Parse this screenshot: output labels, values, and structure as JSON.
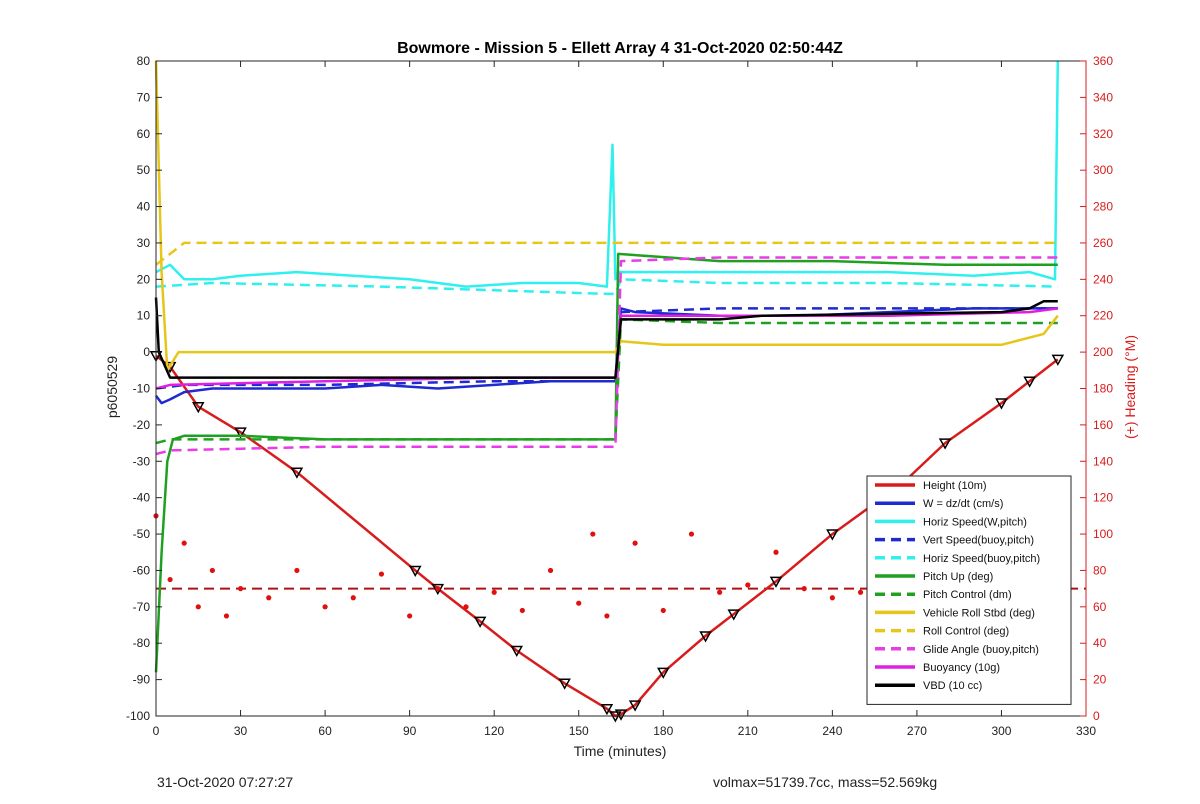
{
  "chart_data": {
    "type": "line",
    "title": "Bowmore - Mission 5 - Ellett Array 4 31-Oct-2020 02:50:44Z",
    "xlabel": "Time (minutes)",
    "ylabel_left": "p6050529",
    "ylabel_right": "(+) Heading (°M)",
    "xlim": [
      0,
      330
    ],
    "ylim_left": [
      -100,
      80
    ],
    "ylim_right": [
      0,
      360
    ],
    "x_ticks": [
      0,
      30,
      60,
      90,
      120,
      150,
      180,
      210,
      240,
      270,
      300,
      330
    ],
    "y_ticks_left": [
      80,
      70,
      60,
      50,
      40,
      30,
      20,
      10,
      0,
      -10,
      -20,
      -30,
      -40,
      -50,
      -60,
      -70,
      -80,
      -90,
      -100
    ],
    "y_ticks_right": [
      360,
      340,
      320,
      300,
      280,
      260,
      240,
      220,
      200,
      180,
      160,
      140,
      120,
      100,
      80,
      60,
      40,
      20,
      0
    ],
    "grid": false,
    "legend_position": "bottom-right",
    "legend": [
      {
        "label": "Height (10m)",
        "color": "#d81c1c",
        "style": "solid"
      },
      {
        "label": "W = dz/dt (cm/s)",
        "color": "#1f2bd0",
        "style": "solid"
      },
      {
        "label": "Horiz Speed(W,pitch)",
        "color": "#2ff0ef",
        "style": "solid"
      },
      {
        "label": "Vert Speed(buoy,pitch)",
        "color": "#1f2bd0",
        "style": "dashed"
      },
      {
        "label": "Horiz Speed(buoy,pitch)",
        "color": "#2ff0ef",
        "style": "dashed"
      },
      {
        "label": "Pitch Up (deg)",
        "color": "#20a020",
        "style": "solid"
      },
      {
        "label": "Pitch Control (dm)",
        "color": "#20a020",
        "style": "dashed"
      },
      {
        "label": "Vehicle Roll Stbd (deg)",
        "color": "#e6c619",
        "style": "solid"
      },
      {
        "label": "Roll Control (deg)",
        "color": "#e6c619",
        "style": "dashed"
      },
      {
        "label": "Glide Angle (buoy,pitch)",
        "color": "#e93ce9",
        "style": "dashed"
      },
      {
        "label": "Buoyancy (10g)",
        "color": "#e020e0",
        "style": "solid"
      },
      {
        "label": "VBD (10 cc)",
        "color": "#000000",
        "style": "solid"
      }
    ],
    "series": [
      {
        "name": "Height (10m)",
        "x": [
          0,
          5,
          15,
          30,
          50,
          92,
          100,
          115,
          128,
          145,
          160,
          163,
          165,
          170,
          180,
          195,
          205,
          220,
          240,
          265,
          280,
          300,
          310,
          320
        ],
        "y": [
          -1,
          -4,
          -15,
          -22,
          -33,
          -60,
          -65,
          -74,
          -82,
          -91,
          -98,
          -100,
          -99.5,
          -97,
          -88,
          -78,
          -72,
          -63,
          -50,
          -36,
          -25,
          -14,
          -8,
          -2
        ]
      },
      {
        "name": "W = dz/dt (cm/s)",
        "x": [
          0,
          2,
          5,
          10,
          20,
          40,
          60,
          80,
          100,
          120,
          140,
          160,
          163,
          165,
          170,
          200,
          230,
          260,
          290,
          310,
          320
        ],
        "y": [
          -12,
          -14,
          -13,
          -11,
          -10,
          -10,
          -10,
          -9,
          -10,
          -9,
          -8,
          -8,
          -8,
          12,
          11,
          10,
          10,
          11,
          12,
          12,
          12
        ]
      },
      {
        "name": "Horiz Speed(W,pitch)",
        "x": [
          0,
          5,
          10,
          20,
          30,
          50,
          70,
          90,
          110,
          130,
          150,
          160,
          162,
          163,
          164,
          170,
          200,
          230,
          260,
          290,
          310,
          319,
          320
        ],
        "y": [
          22,
          24,
          20,
          20,
          21,
          22,
          21,
          20,
          18,
          19,
          19,
          18,
          57,
          20,
          22,
          22,
          22,
          22,
          22,
          21,
          22,
          20,
          80
        ]
      },
      {
        "name": "Vert Speed(buoy,pitch)",
        "x": [
          0,
          10,
          60,
          120,
          160,
          163,
          165,
          200,
          260,
          320
        ],
        "y": [
          -10,
          -9,
          -9,
          -8,
          -8,
          -8,
          11,
          12,
          12,
          12
        ]
      },
      {
        "name": "Horiz Speed(buoy,pitch)",
        "x": [
          0,
          20,
          80,
          160,
          163,
          165,
          200,
          260,
          320
        ],
        "y": [
          18,
          19,
          18,
          16,
          16,
          20,
          19,
          19,
          18
        ]
      },
      {
        "name": "Pitch Up (deg)",
        "x": [
          0,
          2,
          4,
          6,
          10,
          30,
          60,
          90,
          120,
          160,
          163,
          164,
          200,
          240,
          280,
          320
        ],
        "y": [
          -88,
          -55,
          -30,
          -24,
          -23,
          -23,
          -24,
          -24,
          -24,
          -24,
          -24,
          27,
          25,
          25,
          24,
          24
        ]
      },
      {
        "name": "Pitch Control (dm)",
        "x": [
          0,
          5,
          60,
          120,
          163,
          165,
          200,
          260,
          320
        ],
        "y": [
          -25,
          -24,
          -24,
          -24,
          -24,
          9,
          8,
          8,
          8
        ]
      },
      {
        "name": "Vehicle Roll Stbd (deg)",
        "x": [
          0,
          2,
          4,
          8,
          20,
          60,
          100,
          140,
          160,
          163,
          165,
          180,
          220,
          260,
          300,
          315,
          320
        ],
        "y": [
          80,
          22,
          -5,
          0,
          0,
          0,
          0,
          0,
          0,
          0,
          3,
          2,
          2,
          2,
          2,
          5,
          10
        ]
      },
      {
        "name": "Roll Control (deg)",
        "x": [
          0,
          10,
          60,
          120,
          160,
          163,
          165,
          220,
          280,
          320
        ],
        "y": [
          24,
          30,
          30,
          30,
          30,
          30,
          30,
          30,
          30,
          30
        ]
      },
      {
        "name": "Glide Angle (buoy,pitch)",
        "x": [
          0,
          5,
          60,
          120,
          163,
          165,
          200,
          260,
          320
        ],
        "y": [
          -28,
          -27,
          -26,
          -26,
          -26,
          25,
          26,
          26,
          26
        ]
      },
      {
        "name": "Buoyancy (10g)",
        "x": [
          0,
          5,
          60,
          120,
          163,
          165,
          200,
          260,
          310,
          320
        ],
        "y": [
          -10,
          -9,
          -8,
          -7,
          -7,
          10,
          10,
          10,
          11,
          12
        ]
      },
      {
        "name": "VBD (10 cc)",
        "x": [
          0,
          1,
          5,
          10,
          60,
          120,
          163,
          165,
          200,
          215,
          300,
          310,
          315,
          320
        ],
        "y": [
          15,
          0,
          -7,
          -7,
          -7,
          -7,
          -7,
          9,
          9,
          10,
          11,
          12,
          14,
          14
        ]
      },
      {
        "name": "Heading",
        "x": [
          0,
          5,
          10,
          15,
          20,
          25,
          30,
          40,
          50,
          60,
          70,
          80,
          90,
          100,
          110,
          120,
          130,
          140,
          150,
          155,
          160,
          170,
          180,
          190,
          200,
          210,
          220,
          230,
          240,
          250,
          260,
          270,
          280,
          290,
          300,
          310,
          320
        ],
        "y": [
          110,
          75,
          95,
          60,
          80,
          55,
          70,
          65,
          80,
          60,
          65,
          78,
          55,
          70,
          60,
          68,
          58,
          80,
          62,
          100,
          55,
          95,
          58,
          100,
          68,
          72,
          90,
          70,
          65,
          68,
          70,
          80,
          75,
          90,
          70,
          95,
          60
        ],
        "axis": "right"
      }
    ],
    "reference_lines": [
      {
        "y_right": 70,
        "color": "#b01010",
        "style": "dashed"
      }
    ]
  },
  "footer": {
    "left": "31-Oct-2020 07:27:27",
    "right": "volmax=51739.7cc, mass=52.569kg"
  }
}
